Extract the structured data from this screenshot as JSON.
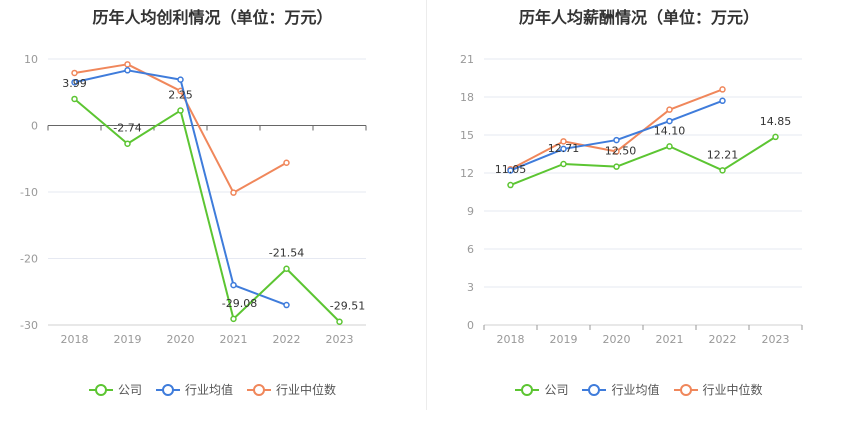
{
  "colors": {
    "company": "#5cc532",
    "industry_avg": "#3f7cdb",
    "industry_median": "#f0875b",
    "axis": "#999999",
    "grid": "#e6e9f2",
    "label": "#333333"
  },
  "legend": [
    {
      "key": "company",
      "label": "公司"
    },
    {
      "key": "industry_avg",
      "label": "行业均值"
    },
    {
      "key": "industry_median",
      "label": "行业中位数"
    }
  ],
  "chart_data": [
    {
      "type": "line",
      "title": "历年人均创利情况（单位：万元）",
      "categories": [
        "2018",
        "2019",
        "2020",
        "2021",
        "2022",
        "2023"
      ],
      "ylim": [
        -30,
        10
      ],
      "yticks": [
        10,
        0,
        -10,
        -20,
        -30
      ],
      "zero_line": true,
      "grid": true,
      "legend_position": "bottom",
      "series": [
        {
          "name": "公司",
          "key": "company",
          "values": [
            3.99,
            -2.74,
            2.25,
            -29.08,
            -21.54,
            -29.51
          ],
          "labels": [
            "3.99",
            "-2.74",
            "2.25",
            "-29.08",
            "-21.54",
            "-29.51"
          ]
        },
        {
          "name": "行业均值",
          "key": "industry_avg",
          "values": [
            6.5,
            8.3,
            6.9,
            -24.0,
            -27.0,
            null
          ]
        },
        {
          "name": "行业中位数",
          "key": "industry_median",
          "values": [
            7.9,
            9.2,
            5.2,
            -10.1,
            -5.6,
            null
          ]
        }
      ]
    },
    {
      "type": "line",
      "title": "历年人均薪酬情况（单位：万元）",
      "categories": [
        "2018",
        "2019",
        "2020",
        "2021",
        "2022",
        "2023"
      ],
      "ylim": [
        0,
        21
      ],
      "yticks": [
        21,
        18,
        15,
        12,
        9,
        6,
        3,
        0
      ],
      "zero_line": false,
      "grid": true,
      "legend_position": "bottom",
      "series": [
        {
          "name": "公司",
          "key": "company",
          "values": [
            11.05,
            12.71,
            12.5,
            14.1,
            12.21,
            14.85
          ],
          "labels": [
            "11.05",
            "12.71",
            "12.50",
            "14.10",
            "12.21",
            "14.85"
          ]
        },
        {
          "name": "行业均值",
          "key": "industry_avg",
          "values": [
            12.2,
            13.9,
            14.6,
            16.1,
            17.7,
            null
          ]
        },
        {
          "name": "行业中位数",
          "key": "industry_median",
          "values": [
            12.3,
            14.5,
            13.7,
            17.0,
            18.6,
            null
          ]
        }
      ]
    }
  ]
}
